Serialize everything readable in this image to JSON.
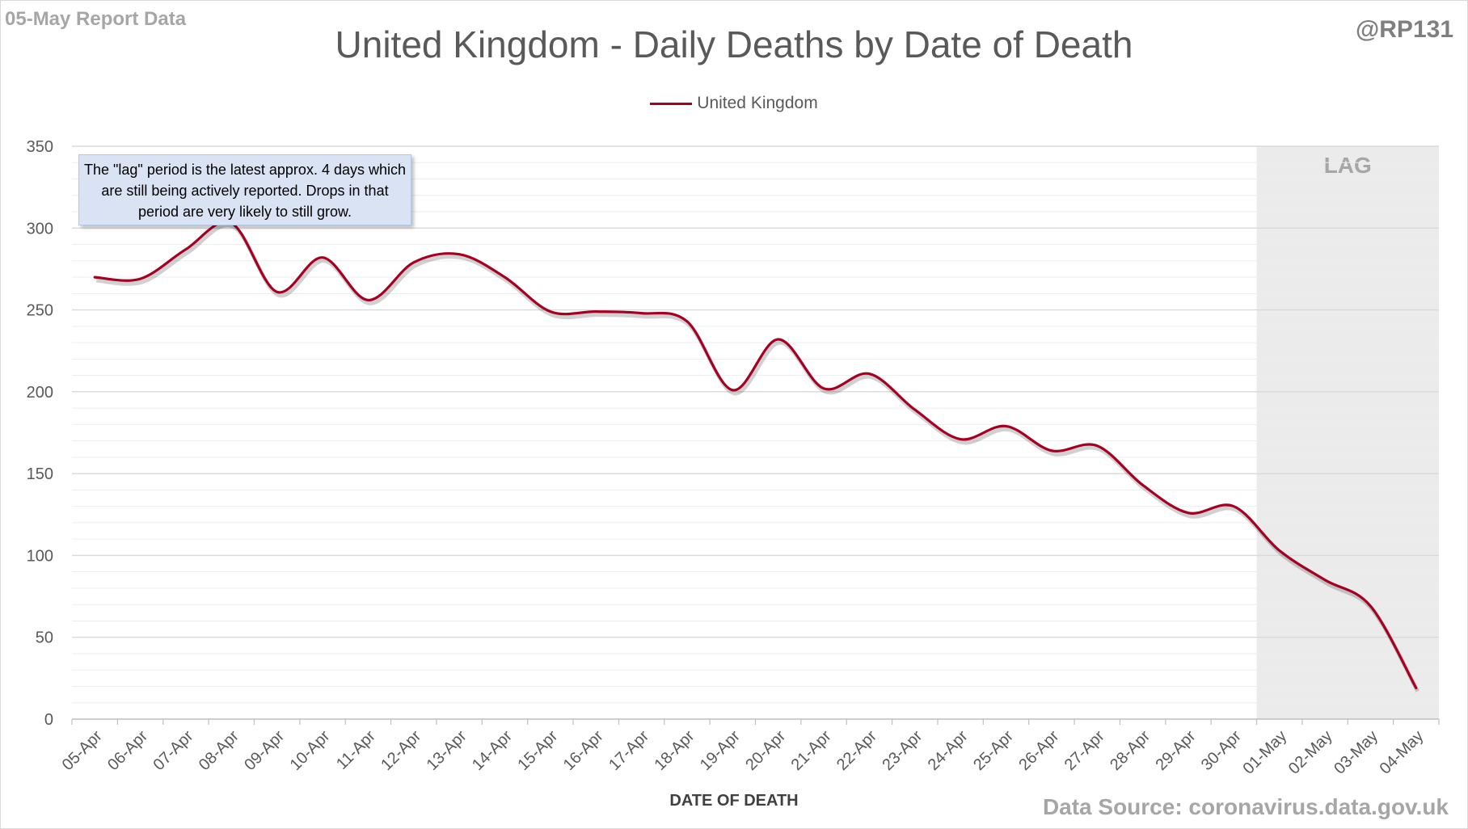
{
  "header": {
    "report_label": "05-May Report Data",
    "author": "@RP131"
  },
  "footer": {
    "source": "Data Source: coronavirus.data.gov.uk"
  },
  "annotations": {
    "lag_label": "LAG",
    "note": "The \"lag\" period is the latest approx. 4 days which are still being actively reported.  Drops in that period are very likely to still grow."
  },
  "colors": {
    "series": "#a50021",
    "lag_shade": "#ebebeb",
    "major_grid": "#d9d9d9",
    "minor_grid": "#ededed"
  },
  "chart_data": {
    "type": "line",
    "title": "United Kingdom - Daily Deaths by Date of Death",
    "xlabel": "DATE OF DEATH",
    "ylabel": "",
    "legend_position": "top-center",
    "grid": true,
    "ylim": [
      0,
      350
    ],
    "yticks": [
      0,
      50,
      100,
      150,
      200,
      250,
      300,
      350
    ],
    "lag_region": {
      "from": "30-Apr",
      "to": "04-May",
      "label": "LAG"
    },
    "categories": [
      "05-Apr",
      "06-Apr",
      "07-Apr",
      "08-Apr",
      "09-Apr",
      "10-Apr",
      "11-Apr",
      "12-Apr",
      "13-Apr",
      "14-Apr",
      "15-Apr",
      "16-Apr",
      "17-Apr",
      "18-Apr",
      "19-Apr",
      "20-Apr",
      "21-Apr",
      "22-Apr",
      "23-Apr",
      "24-Apr",
      "25-Apr",
      "26-Apr",
      "27-Apr",
      "28-Apr",
      "29-Apr",
      "30-Apr",
      "01-May",
      "02-May",
      "03-May",
      "04-May"
    ],
    "series": [
      {
        "name": "United Kingdom",
        "values": [
          270,
          269,
          287,
          303,
          261,
          282,
          256,
          279,
          284,
          270,
          249,
          249,
          248,
          243,
          201,
          232,
          202,
          211,
          189,
          171,
          179,
          164,
          167,
          143,
          126,
          130,
          103,
          85,
          69,
          19
        ]
      }
    ]
  }
}
